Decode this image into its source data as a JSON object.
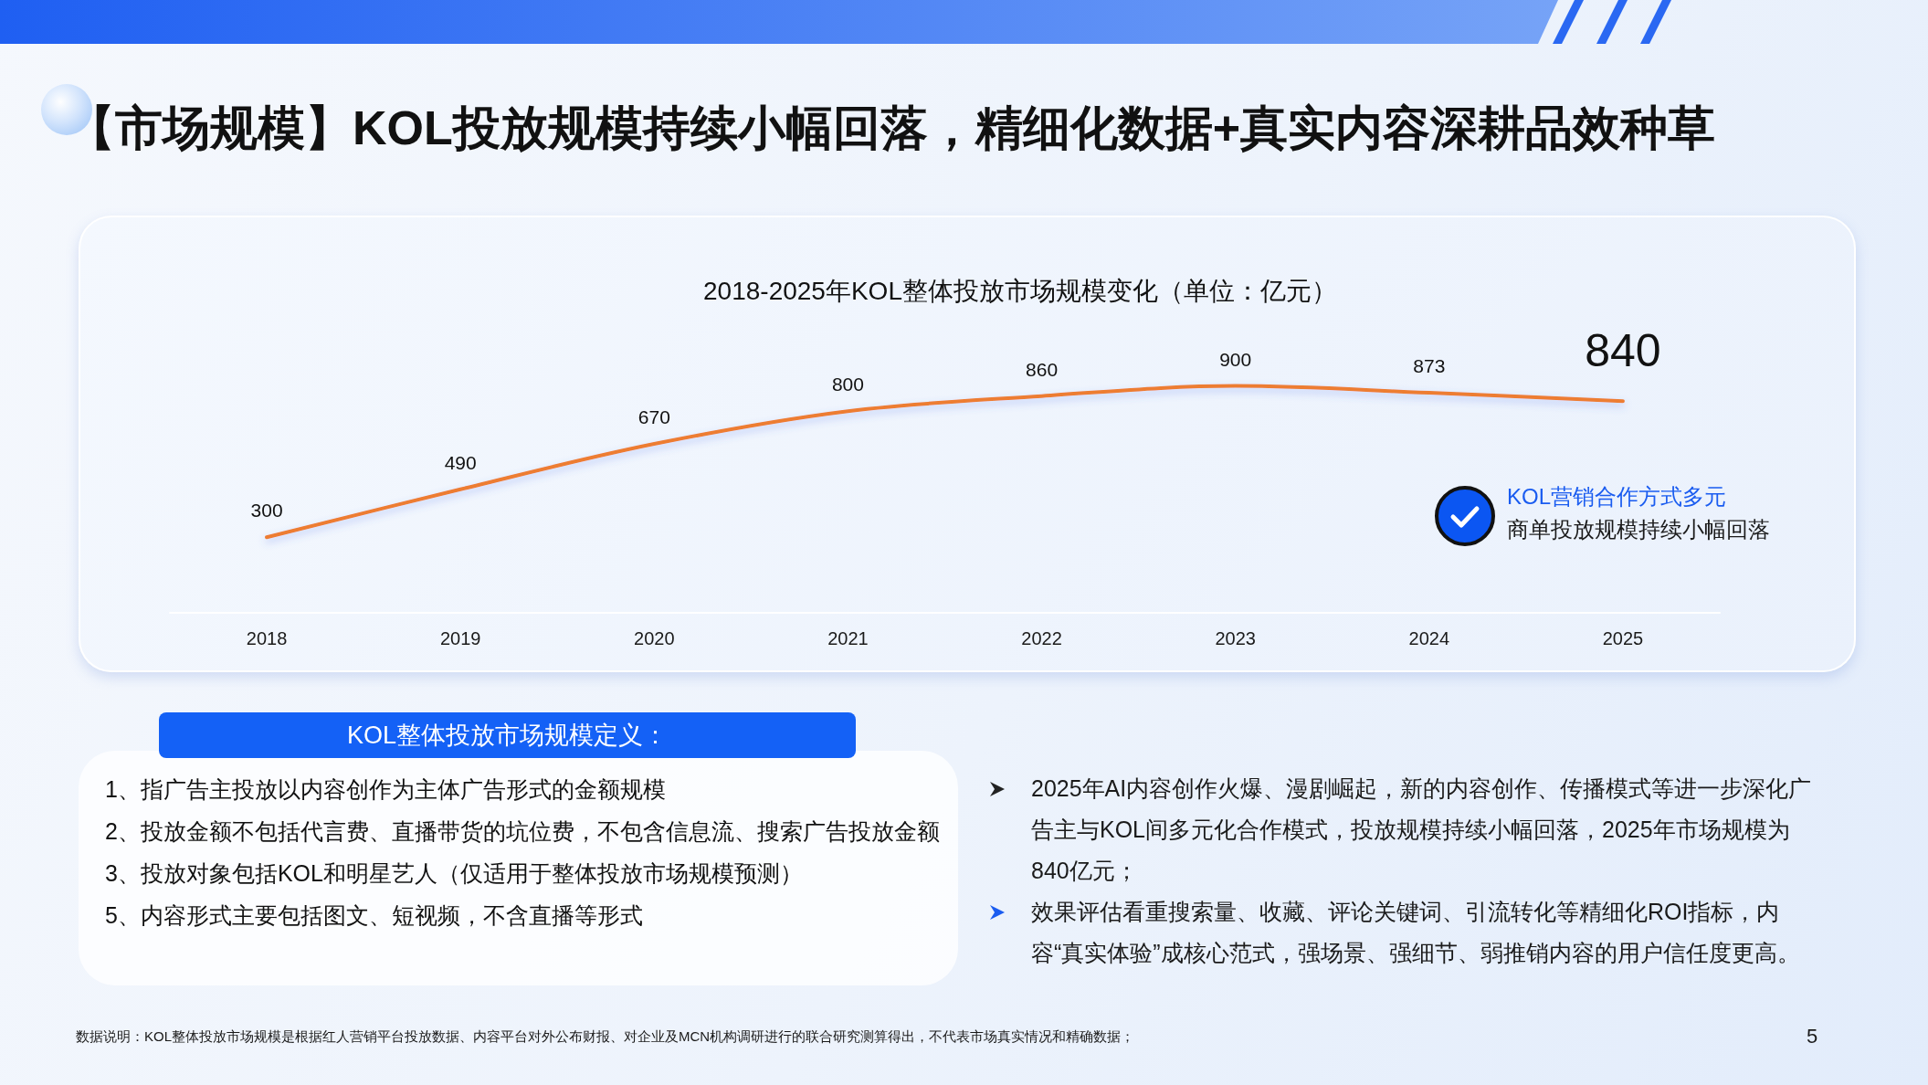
{
  "chart_data": [
    {
      "type": "line",
      "title": "【市场规模】KOL投放规模持续小幅回落，精细化数据+真实内容深耕品效种草",
      "subtitle": "2018-2025年KOL整体投放市场规模变化（单位：亿元）",
      "categories": [
        "2018",
        "2019",
        "2020",
        "2021",
        "2022",
        "2023",
        "2024",
        "2025"
      ],
      "values": [
        300,
        490,
        670,
        800,
        860,
        900,
        873,
        840
      ],
      "color": "#ed7d31",
      "data_labels": true,
      "marker": "none",
      "line_style": "solid",
      "annotations": [
        "KOL营销合作方式多元",
        "商单投放规模持续小幅回落"
      ]
    },
    {
      "type": "other",
      "title": "KOL整体投放市场规模定义：",
      "annotations": [
        "1、指广告主投放以内容创作为主体广告形式的金额规模",
        "2、投放金额不包括代言费、直播带货的坑位费，不包含信息流、搜索广告投放金额",
        "3、投放对象包括KOL和明星艺人（仅适用于整体投放市场规模预测）",
        "5、内容形式主要包括图文、短视频，不含直播等形式"
      ]
    },
    {
      "type": "other",
      "annotations": [
        "2025年AI内容创作火爆、漫剧崛起，新的内容创作、传播模式等进一步深化广告主与KOL间多元化合作模式，投放规模持续小幅回落，2025年市场规模为840亿元；",
        "效果评估看重搜索量、收藏、评论关键词、引流转化等精细化ROI指标，内容“真实体验”成核心范式，强场景、强细节、弱推销内容的用户信任度更高。"
      ]
    },
    {
      "type": "other",
      "annotations": [
        "数据说明：KOL整体投放市场规模是根据红人营销平台投放数据、内容平台对外公布财报、对企业及MCN机构调研进行的联合研究测算得出，不代表市场真实情况和精确数据；",
        "5"
      ]
    }
  ]
}
